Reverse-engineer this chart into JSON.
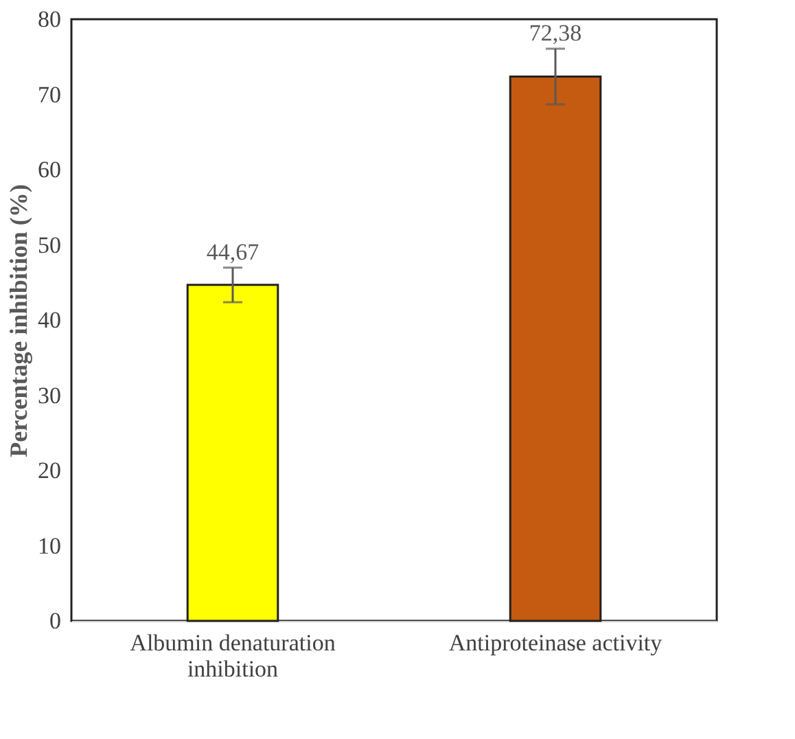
{
  "chart_data": {
    "type": "bar",
    "ylabel": "Percentage inhibition (%)",
    "categories": [
      "Albumin denaturation inhibition",
      "Antiproteinase activity"
    ],
    "values": [
      44.67,
      72.38
    ],
    "colors": [
      "#ffff00",
      "#c55a11"
    ],
    "errors": [
      2.3,
      3.7
    ],
    "value_labels": [
      "44,67",
      "72,38"
    ],
    "ylim": [
      0,
      80
    ],
    "yticks": [
      0,
      10,
      20,
      30,
      40,
      50,
      60,
      70,
      80
    ],
    "grid": false
  }
}
